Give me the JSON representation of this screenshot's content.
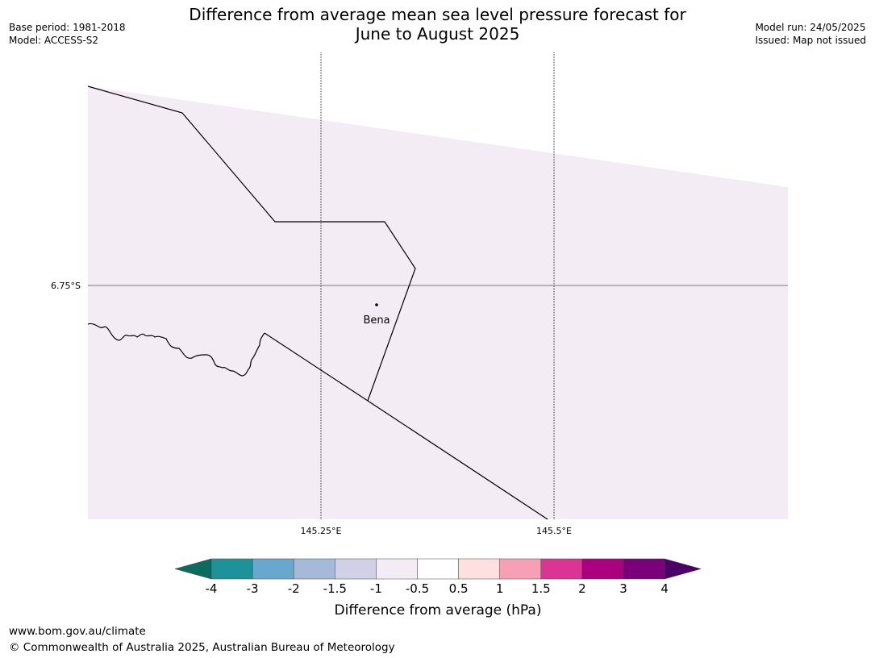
{
  "header": {
    "title_line1": "Difference from average mean sea level pressure forecast for",
    "title_line2": "June to August 2025",
    "base_period": "Base period: 1981-2018",
    "model": "Model: ACCESS-S2",
    "model_run": "Model run: 24/05/2025",
    "issued": "Issued: Map not issued"
  },
  "map": {
    "fill_color": "#f4ecf5",
    "lat_labels": [
      "6.75°S"
    ],
    "lon_labels": [
      "145.25°E",
      "145.5°E"
    ],
    "places": [
      {
        "name": "Bena"
      }
    ]
  },
  "colorbar": {
    "label": "Difference from average (hPa)",
    "tick_labels": [
      "-4",
      "-3",
      "-2",
      "-1.5",
      "-1",
      "-0.5",
      "0.5",
      "1",
      "1.5",
      "2",
      "3",
      "4"
    ],
    "low_extend_color": "#0b6b5c",
    "high_extend_color": "#4a0066",
    "colors": [
      "#1b9398",
      "#68a8cf",
      "#a7b9db",
      "#d2d0e6",
      "#f4ecf5",
      "#ffffff",
      "#fde0df",
      "#f7a0b5",
      "#da3594",
      "#aa007f",
      "#7a007a"
    ]
  },
  "footer": {
    "website": "www.bom.gov.au/climate",
    "copyright": "© Commonwealth of Australia 2025, Australian Bureau of Meteorology"
  }
}
